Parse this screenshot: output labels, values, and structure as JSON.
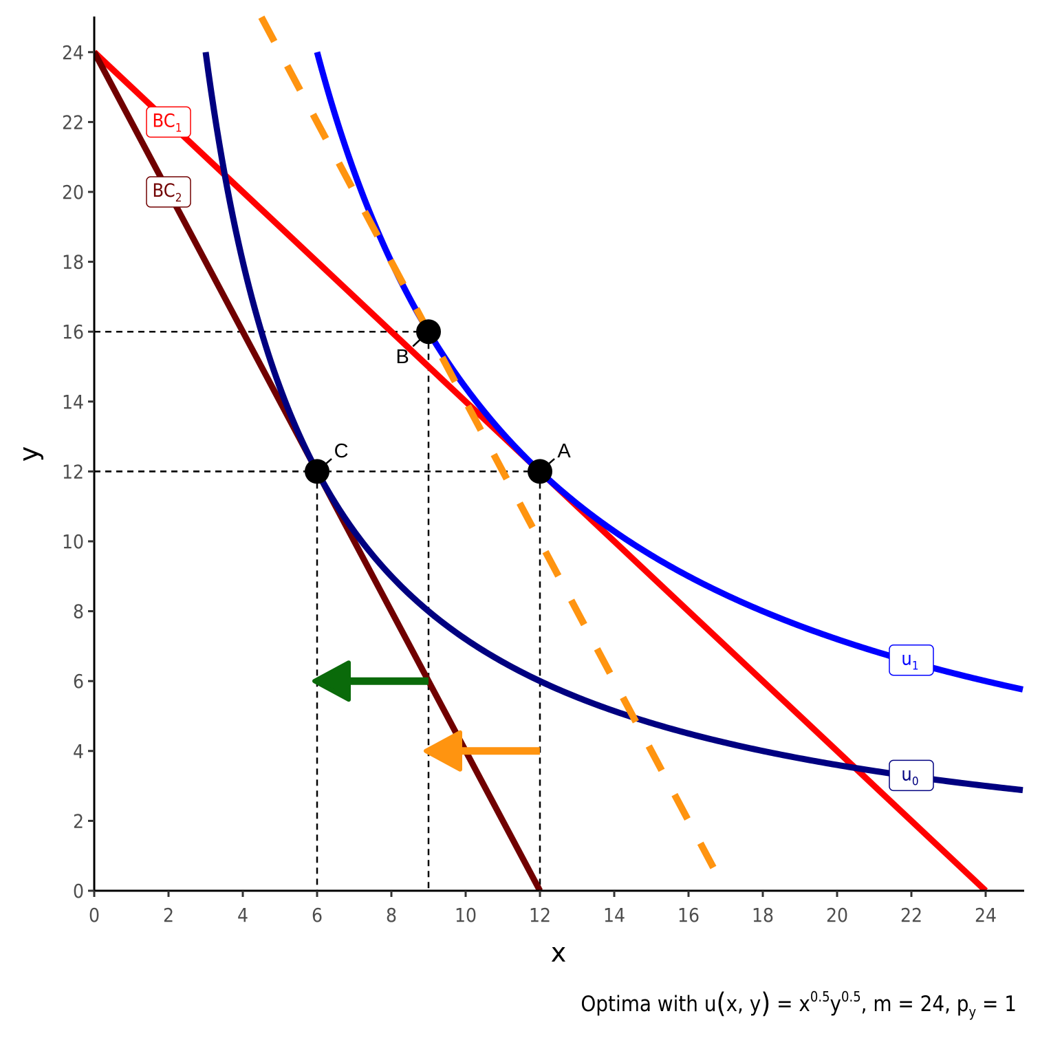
{
  "chart_data": {
    "type": "line",
    "xlabel": "x",
    "ylabel": "y",
    "xlim": [
      0,
      25
    ],
    "ylim": [
      0,
      25
    ],
    "xticks": [
      0,
      2,
      4,
      6,
      8,
      10,
      12,
      14,
      16,
      18,
      20,
      22,
      24
    ],
    "yticks": [
      0,
      2,
      4,
      6,
      8,
      10,
      12,
      14,
      16,
      18,
      20,
      22,
      24
    ],
    "grid": false,
    "caption": {
      "prefix": "Optima with u",
      "paren_open": "(",
      "args": "x, y",
      "paren_close": ")",
      "eq": " = x",
      "exp1": "0.5",
      "y": "y",
      "exp2": "0.5",
      "mid": ", m = 24, p",
      "sub": "y",
      "tail": " = 1"
    },
    "colors": {
      "bc1": "#ff0000",
      "bc2": "#700000",
      "u0": "#000080",
      "u1": "#0000ff",
      "dashed_bc": "#ff9410",
      "green_arrow": "#0a6a0a",
      "orange_arrow": "#ff9410"
    },
    "series": [
      {
        "name": "BC1",
        "label_main": "BC",
        "label_sub": "1",
        "kind": "line",
        "points": [
          [
            0,
            24
          ],
          [
            24,
            0
          ]
        ],
        "color": "#ff0000",
        "label_at": [
          2,
          22
        ]
      },
      {
        "name": "BC2",
        "label_main": "BC",
        "label_sub": "2",
        "kind": "line",
        "points": [
          [
            0,
            24
          ],
          [
            12,
            0
          ]
        ],
        "color": "#700000",
        "label_at": [
          2,
          20
        ]
      },
      {
        "name": "u0",
        "label_main": "u",
        "label_sub": "0",
        "kind": "indifference",
        "k": 72,
        "x_from": 3,
        "x_to": 25,
        "color": "#000080",
        "label_at": [
          22,
          3.3
        ]
      },
      {
        "name": "u1",
        "label_main": "u",
        "label_sub": "1",
        "kind": "indifference",
        "k": 144,
        "x_from": 6,
        "x_to": 25,
        "color": "#0000ff",
        "label_at": [
          22,
          6.6
        ]
      },
      {
        "name": "dashed budget",
        "kind": "dashed-line",
        "points": [
          [
            4.5,
            25
          ],
          [
            17,
            0
          ]
        ],
        "color": "#ff9410"
      }
    ],
    "points": [
      {
        "label": "A",
        "x": 12,
        "y": 12,
        "label_dx": 0.65,
        "label_dy": 0.6
      },
      {
        "label": "B",
        "x": 9,
        "y": 16,
        "label_dx": -0.7,
        "label_dy": -0.7
      },
      {
        "label": "C",
        "x": 6,
        "y": 12,
        "label_dx": 0.65,
        "label_dy": 0.6
      }
    ],
    "guides": [
      {
        "x": 9,
        "y": 16
      },
      {
        "x": 12,
        "y": 12
      },
      {
        "x": 6,
        "y": 12
      }
    ],
    "arrows": [
      {
        "name": "substitution effect",
        "from": [
          9,
          6
        ],
        "to": [
          6,
          6
        ],
        "color": "#0a6a0a"
      },
      {
        "name": "income effect",
        "from": [
          12,
          4
        ],
        "to": [
          9,
          4
        ],
        "color": "#ff9410"
      }
    ]
  }
}
